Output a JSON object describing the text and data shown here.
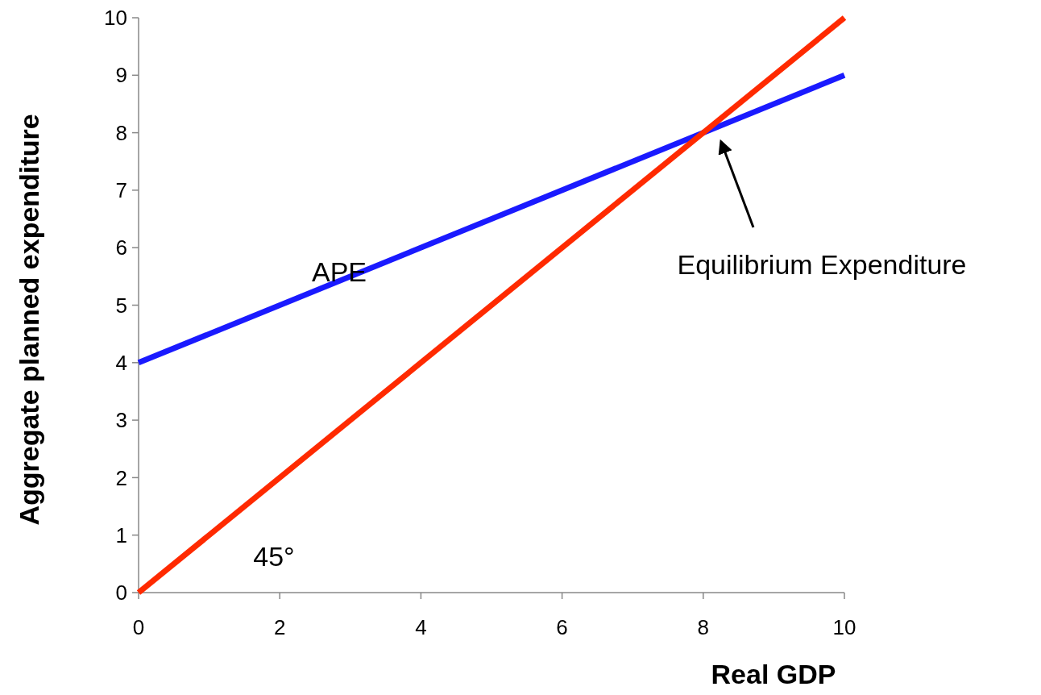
{
  "chart_data": {
    "type": "line",
    "xlabel": "Real GDP",
    "ylabel": "Aggregate planned expenditure",
    "x": [
      0,
      10
    ],
    "series": [
      {
        "name": "APE",
        "color": "#1a1aff",
        "values": [
          4,
          9
        ]
      },
      {
        "color": "#ff2a00",
        "values": [
          0,
          10
        ]
      }
    ],
    "xlim": [
      0,
      10
    ],
    "ylim": [
      0,
      10
    ],
    "xticks": [
      0,
      2,
      4,
      6,
      8,
      10
    ],
    "yticks": [
      0,
      1,
      2,
      3,
      4,
      5,
      6,
      7,
      8,
      9,
      10
    ],
    "grid": false,
    "marker": "none",
    "line_style": "solid",
    "annotations": [
      "45°",
      "Equilibrium Expenditure"
    ]
  }
}
